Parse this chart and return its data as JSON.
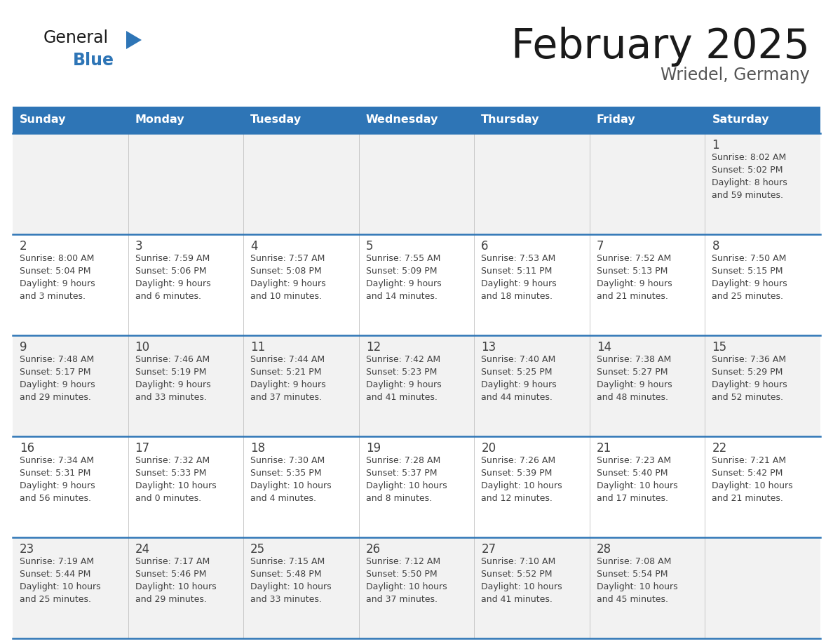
{
  "title": "February 2025",
  "subtitle": "Wriedel, Germany",
  "header_color": "#2E75B6",
  "header_text_color": "#FFFFFF",
  "background_color": "#FFFFFF",
  "row_bg_odd": "#F2F2F2",
  "row_bg_even": "#FFFFFF",
  "text_color": "#404040",
  "border_color": "#2E75B6",
  "divider_color": "#C0C0C0",
  "logo_text_color": "#1A1A1A",
  "logo_blue_color": "#2E75B6",
  "subtitle_color": "#555555",
  "days_of_week": [
    "Sunday",
    "Monday",
    "Tuesday",
    "Wednesday",
    "Thursday",
    "Friday",
    "Saturday"
  ],
  "calendar_data": [
    [
      {
        "day": "",
        "sunrise": "",
        "sunset": "",
        "daylight": ""
      },
      {
        "day": "",
        "sunrise": "",
        "sunset": "",
        "daylight": ""
      },
      {
        "day": "",
        "sunrise": "",
        "sunset": "",
        "daylight": ""
      },
      {
        "day": "",
        "sunrise": "",
        "sunset": "",
        "daylight": ""
      },
      {
        "day": "",
        "sunrise": "",
        "sunset": "",
        "daylight": ""
      },
      {
        "day": "",
        "sunrise": "",
        "sunset": "",
        "daylight": ""
      },
      {
        "day": "1",
        "sunrise": "8:02 AM",
        "sunset": "5:02 PM",
        "daylight": "8 hours\nand 59 minutes."
      }
    ],
    [
      {
        "day": "2",
        "sunrise": "8:00 AM",
        "sunset": "5:04 PM",
        "daylight": "9 hours\nand 3 minutes."
      },
      {
        "day": "3",
        "sunrise": "7:59 AM",
        "sunset": "5:06 PM",
        "daylight": "9 hours\nand 6 minutes."
      },
      {
        "day": "4",
        "sunrise": "7:57 AM",
        "sunset": "5:08 PM",
        "daylight": "9 hours\nand 10 minutes."
      },
      {
        "day": "5",
        "sunrise": "7:55 AM",
        "sunset": "5:09 PM",
        "daylight": "9 hours\nand 14 minutes."
      },
      {
        "day": "6",
        "sunrise": "7:53 AM",
        "sunset": "5:11 PM",
        "daylight": "9 hours\nand 18 minutes."
      },
      {
        "day": "7",
        "sunrise": "7:52 AM",
        "sunset": "5:13 PM",
        "daylight": "9 hours\nand 21 minutes."
      },
      {
        "day": "8",
        "sunrise": "7:50 AM",
        "sunset": "5:15 PM",
        "daylight": "9 hours\nand 25 minutes."
      }
    ],
    [
      {
        "day": "9",
        "sunrise": "7:48 AM",
        "sunset": "5:17 PM",
        "daylight": "9 hours\nand 29 minutes."
      },
      {
        "day": "10",
        "sunrise": "7:46 AM",
        "sunset": "5:19 PM",
        "daylight": "9 hours\nand 33 minutes."
      },
      {
        "day": "11",
        "sunrise": "7:44 AM",
        "sunset": "5:21 PM",
        "daylight": "9 hours\nand 37 minutes."
      },
      {
        "day": "12",
        "sunrise": "7:42 AM",
        "sunset": "5:23 PM",
        "daylight": "9 hours\nand 41 minutes."
      },
      {
        "day": "13",
        "sunrise": "7:40 AM",
        "sunset": "5:25 PM",
        "daylight": "9 hours\nand 44 minutes."
      },
      {
        "day": "14",
        "sunrise": "7:38 AM",
        "sunset": "5:27 PM",
        "daylight": "9 hours\nand 48 minutes."
      },
      {
        "day": "15",
        "sunrise": "7:36 AM",
        "sunset": "5:29 PM",
        "daylight": "9 hours\nand 52 minutes."
      }
    ],
    [
      {
        "day": "16",
        "sunrise": "7:34 AM",
        "sunset": "5:31 PM",
        "daylight": "9 hours\nand 56 minutes."
      },
      {
        "day": "17",
        "sunrise": "7:32 AM",
        "sunset": "5:33 PM",
        "daylight": "10 hours\nand 0 minutes."
      },
      {
        "day": "18",
        "sunrise": "7:30 AM",
        "sunset": "5:35 PM",
        "daylight": "10 hours\nand 4 minutes."
      },
      {
        "day": "19",
        "sunrise": "7:28 AM",
        "sunset": "5:37 PM",
        "daylight": "10 hours\nand 8 minutes."
      },
      {
        "day": "20",
        "sunrise": "7:26 AM",
        "sunset": "5:39 PM",
        "daylight": "10 hours\nand 12 minutes."
      },
      {
        "day": "21",
        "sunrise": "7:23 AM",
        "sunset": "5:40 PM",
        "daylight": "10 hours\nand 17 minutes."
      },
      {
        "day": "22",
        "sunrise": "7:21 AM",
        "sunset": "5:42 PM",
        "daylight": "10 hours\nand 21 minutes."
      }
    ],
    [
      {
        "day": "23",
        "sunrise": "7:19 AM",
        "sunset": "5:44 PM",
        "daylight": "10 hours\nand 25 minutes."
      },
      {
        "day": "24",
        "sunrise": "7:17 AM",
        "sunset": "5:46 PM",
        "daylight": "10 hours\nand 29 minutes."
      },
      {
        "day": "25",
        "sunrise": "7:15 AM",
        "sunset": "5:48 PM",
        "daylight": "10 hours\nand 33 minutes."
      },
      {
        "day": "26",
        "sunrise": "7:12 AM",
        "sunset": "5:50 PM",
        "daylight": "10 hours\nand 37 minutes."
      },
      {
        "day": "27",
        "sunrise": "7:10 AM",
        "sunset": "5:52 PM",
        "daylight": "10 hours\nand 41 minutes."
      },
      {
        "day": "28",
        "sunrise": "7:08 AM",
        "sunset": "5:54 PM",
        "daylight": "10 hours\nand 45 minutes."
      },
      {
        "day": "",
        "sunrise": "",
        "sunset": "",
        "daylight": ""
      }
    ]
  ]
}
